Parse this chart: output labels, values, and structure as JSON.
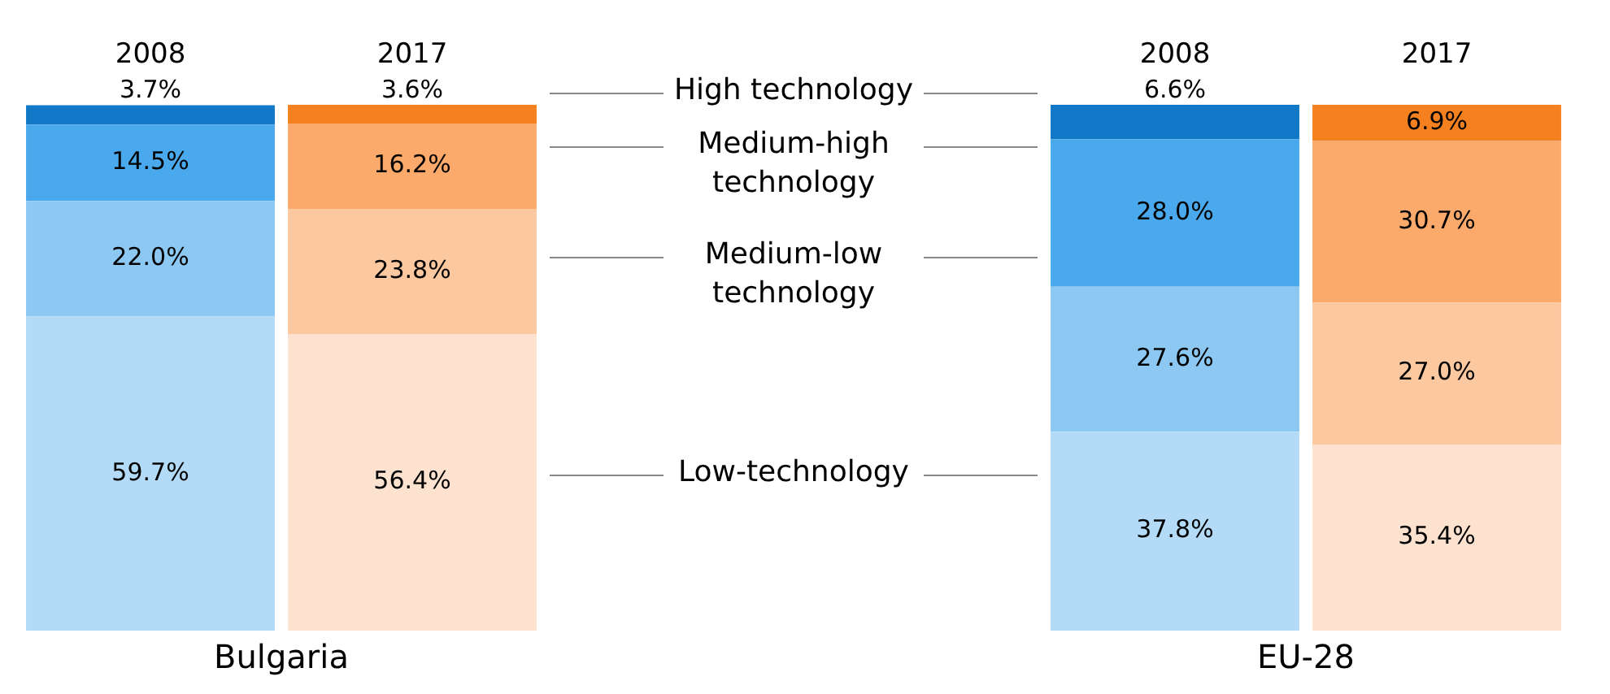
{
  "chart_data": [
    {
      "type": "bar",
      "stacked": true,
      "categories": [
        "2008",
        "2017"
      ],
      "tick_labels": "x",
      "grid": false,
      "xlabel": "Bulgaria",
      "series": [
        {
          "name": "Low-technology",
          "colors": [
            "#b3dbf8",
            "#fde3cf"
          ],
          "values": [
            59.7,
            56.4
          ],
          "value_labels": [
            "59.7%",
            "56.4%"
          ]
        },
        {
          "name": "Medium-low technology",
          "colors": [
            "#8cc8f2",
            "#fcc8a0"
          ],
          "values": [
            22.0,
            23.8
          ],
          "value_labels": [
            "22.0%",
            "23.8%"
          ]
        },
        {
          "name": "Medium-high technology",
          "colors": [
            "#4aa9ec",
            "#fcaa6c"
          ],
          "values": [
            14.5,
            16.2
          ],
          "value_labels": [
            "14.5%",
            "16.2%"
          ]
        },
        {
          "name": "High technology",
          "colors": [
            "#1178c8",
            "#f5801f"
          ],
          "values": [
            3.7,
            3.6
          ],
          "value_labels": [
            "3.7%",
            "3.6%"
          ]
        }
      ]
    },
    {
      "type": "bar",
      "stacked": true,
      "categories": [
        "2008",
        "2017"
      ],
      "tick_labels": "x",
      "grid": false,
      "xlabel": "EU-28",
      "series": [
        {
          "colors": [
            "#b3dbf8",
            "#fde3cf"
          ],
          "values": [
            37.8,
            35.4
          ],
          "value_labels": [
            "37.8%",
            "35.4%"
          ]
        },
        {
          "colors": [
            "#8cc8f2",
            "#fcc8a0"
          ],
          "values": [
            27.6,
            27.0
          ],
          "value_labels": [
            "27.6%",
            "27.0%"
          ]
        },
        {
          "colors": [
            "#4aa9ec",
            "#fcaa6c"
          ],
          "values": [
            28.0,
            30.7
          ],
          "value_labels": [
            "28.0%",
            "30.7%"
          ]
        },
        {
          "colors": [
            "#1178c8",
            "#f5801f"
          ],
          "values": [
            6.6,
            6.9
          ],
          "value_labels": [
            "6.6%",
            "6.9%"
          ]
        }
      ]
    }
  ]
}
